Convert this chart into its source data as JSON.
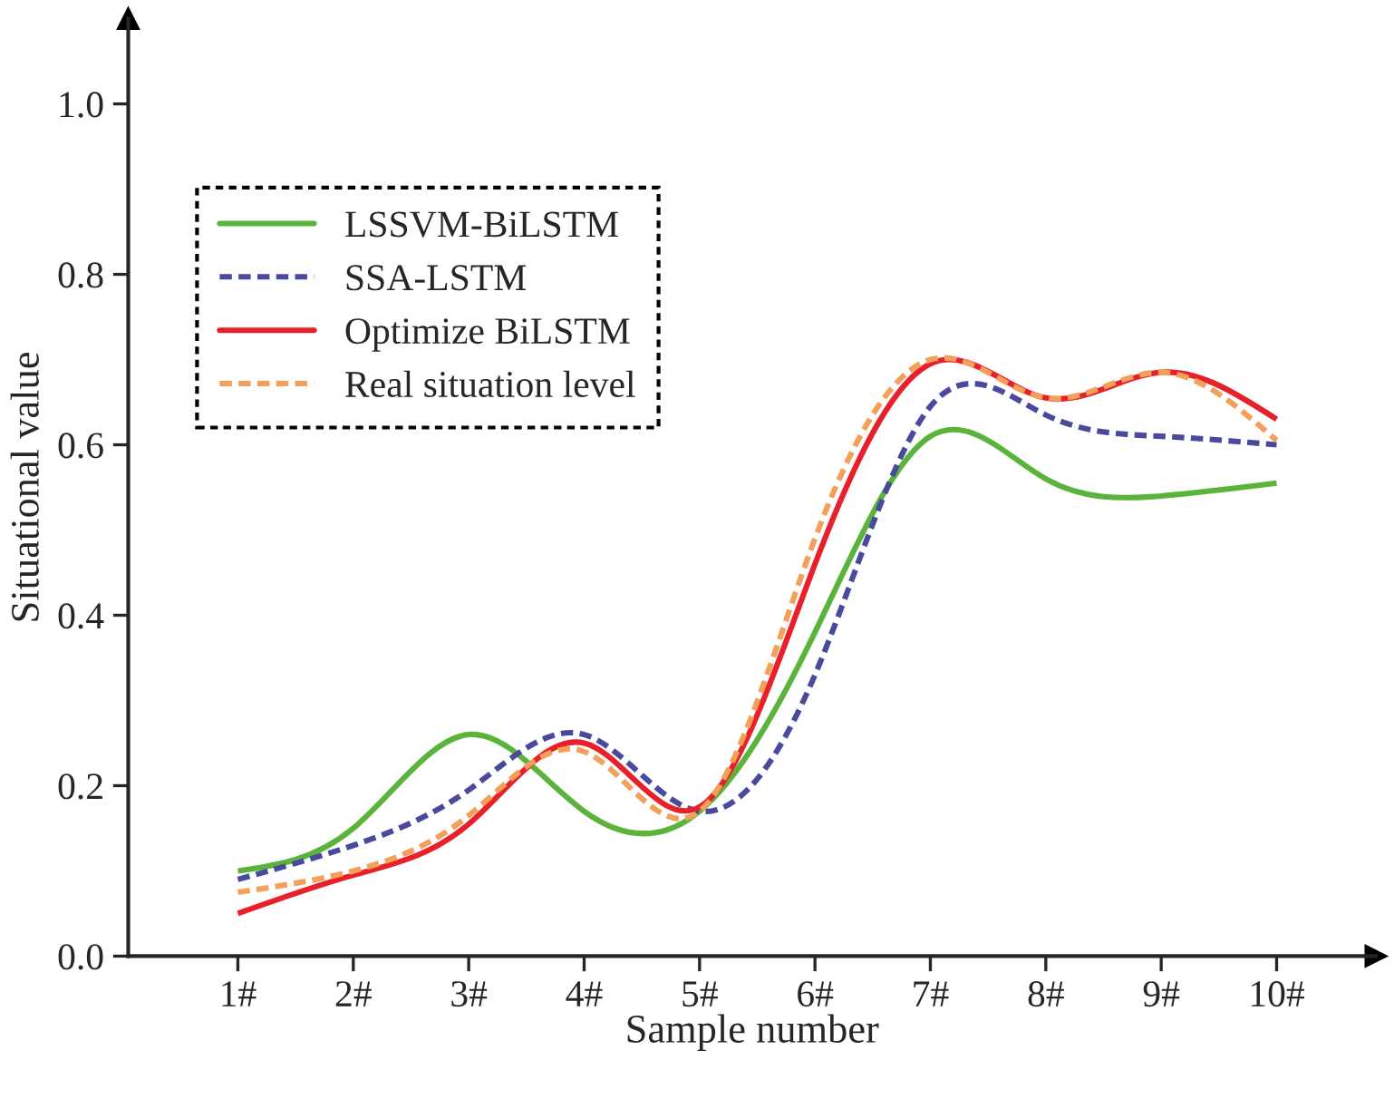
{
  "chart_data": {
    "type": "line",
    "xlabel": "Sample number",
    "ylabel": "Situational value",
    "categories": [
      "1#",
      "2#",
      "3#",
      "4#",
      "5#",
      "6#",
      "7#",
      "8#",
      "9#",
      "10#"
    ],
    "series": [
      {
        "name": "LSSVM-BiLSTM",
        "color": "#5ab43c",
        "line_style": "solid",
        "values": [
          0.1,
          0.15,
          0.26,
          0.17,
          0.17,
          0.38,
          0.61,
          0.56,
          0.54,
          0.555
        ]
      },
      {
        "name": "SSA-LSTM",
        "color": "#4a4a9c",
        "line_style": "dashed",
        "values": [
          0.09,
          0.13,
          0.195,
          0.26,
          0.17,
          0.33,
          0.645,
          0.635,
          0.61,
          0.6
        ]
      },
      {
        "name": "Optimize BiLSTM",
        "color": "#e8202a",
        "line_style": "solid",
        "values": [
          0.05,
          0.095,
          0.155,
          0.25,
          0.175,
          0.46,
          0.695,
          0.655,
          0.685,
          0.63
        ]
      },
      {
        "name": "Real situation level",
        "color": "#f4a05a",
        "line_style": "dashed",
        "values": [
          0.075,
          0.1,
          0.165,
          0.24,
          0.17,
          0.49,
          0.7,
          0.655,
          0.685,
          0.605
        ]
      }
    ],
    "ylim": [
      0,
      1.1
    ],
    "yticks": [
      {
        "value": 0,
        "label": "0.0"
      },
      0.2,
      0.4,
      0.6,
      0.8,
      {
        "value": 1,
        "label": "1.0"
      }
    ],
    "grid": false,
    "legend": "top left",
    "marker": "none"
  }
}
